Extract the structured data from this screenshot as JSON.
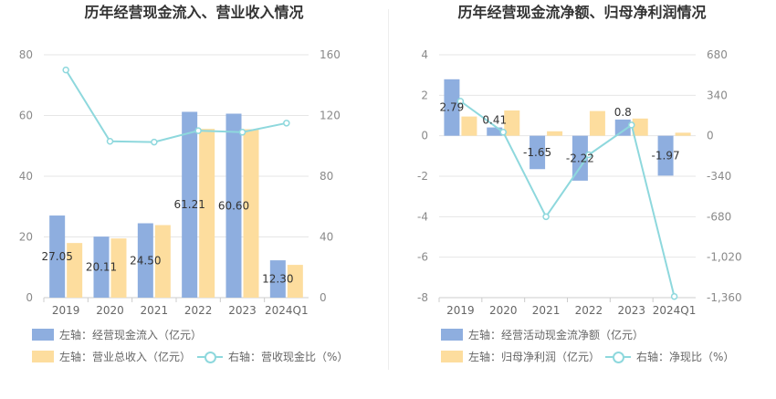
{
  "charts": [
    {
      "title": "历年经营现金流入、营业收入情况",
      "legend": [
        {
          "label": "左轴：经营现金流入（亿元）",
          "kind": "bar",
          "color": "#8eaedf"
        },
        {
          "label": "左轴：营业总收入（亿元）",
          "kind": "bar",
          "color": "#fddd9e"
        },
        {
          "label": "右轴：营收现金比（%）",
          "kind": "line",
          "color": "#8ed8dd"
        }
      ]
    },
    {
      "title": "历年经营现金流净额、归母净利润情况",
      "legend": [
        {
          "label": "左轴：经营活动现金流净额（亿元）",
          "kind": "bar",
          "color": "#8eaedf"
        },
        {
          "label": "左轴：归母净利润（亿元）",
          "kind": "bar",
          "color": "#fddd9e"
        },
        {
          "label": "右轴：净现比（%）",
          "kind": "line",
          "color": "#8ed8dd"
        }
      ]
    }
  ],
  "chart_data": [
    {
      "type": "bar",
      "title": "历年经营现金流入、营业收入情况",
      "categories": [
        "2019",
        "2020",
        "2021",
        "2022",
        "2023",
        "2024Q1"
      ],
      "series": [
        {
          "name": "左轴：经营现金流入（亿元）",
          "axis": "left",
          "type": "bar",
          "color": "#8eaedf",
          "values": [
            27.05,
            20.11,
            24.5,
            61.21,
            60.6,
            12.3
          ],
          "labels": [
            "27.05",
            "20.11",
            "24.50",
            "61.21",
            "60.60",
            "12.30"
          ]
        },
        {
          "name": "左轴：营业总收入（亿元）",
          "axis": "left",
          "type": "bar",
          "color": "#fddd9e",
          "values": [
            18.0,
            19.5,
            23.9,
            55.6,
            55.5,
            10.8
          ]
        },
        {
          "name": "右轴：营收现金比（%）",
          "axis": "right",
          "type": "line",
          "color": "#8ed8dd",
          "values": [
            150,
            103,
            102.5,
            110,
            109,
            115
          ]
        }
      ],
      "ylim_left": [
        0,
        80
      ],
      "yticks_left": [
        0,
        20,
        40,
        60,
        80
      ],
      "ylim_right": [
        0,
        160
      ],
      "yticks_right": [
        0,
        40,
        80,
        120,
        160
      ],
      "grid": true,
      "legend_position": "bottom"
    },
    {
      "type": "bar",
      "title": "历年经营现金流净额、归母净利润情况",
      "categories": [
        "2019",
        "2020",
        "2021",
        "2022",
        "2023",
        "2024Q1"
      ],
      "series": [
        {
          "name": "左轴：经营活动现金流净额（亿元）",
          "axis": "left",
          "type": "bar",
          "color": "#8eaedf",
          "values": [
            2.79,
            0.41,
            -1.65,
            -2.22,
            0.8,
            -1.97
          ],
          "labels": [
            "2.79",
            "0.41",
            "-1.65",
            "-2.22",
            "0.8",
            "-1.97"
          ]
        },
        {
          "name": "左轴：归母净利润（亿元）",
          "axis": "left",
          "type": "bar",
          "color": "#fddd9e",
          "values": [
            0.95,
            1.25,
            0.22,
            1.22,
            0.85,
            0.15
          ]
        },
        {
          "name": "右轴：净现比（%）",
          "axis": "right",
          "type": "line",
          "color": "#8ed8dd",
          "values": [
            290,
            30,
            -680,
            -160,
            90,
            -1350
          ]
        }
      ],
      "ylim_left": [
        -8,
        4
      ],
      "yticks_left": [
        -8,
        -6,
        -4,
        -2,
        0,
        2,
        4
      ],
      "ylim_right": [
        -1360,
        680
      ],
      "yticks_right": [
        "-1,360",
        "-1,020",
        "-680",
        "-340",
        "0",
        "340",
        "680"
      ],
      "yticks_right_values": [
        -1360,
        -1020,
        -680,
        -340,
        0,
        340,
        680
      ],
      "grid": true,
      "legend_position": "bottom"
    }
  ]
}
